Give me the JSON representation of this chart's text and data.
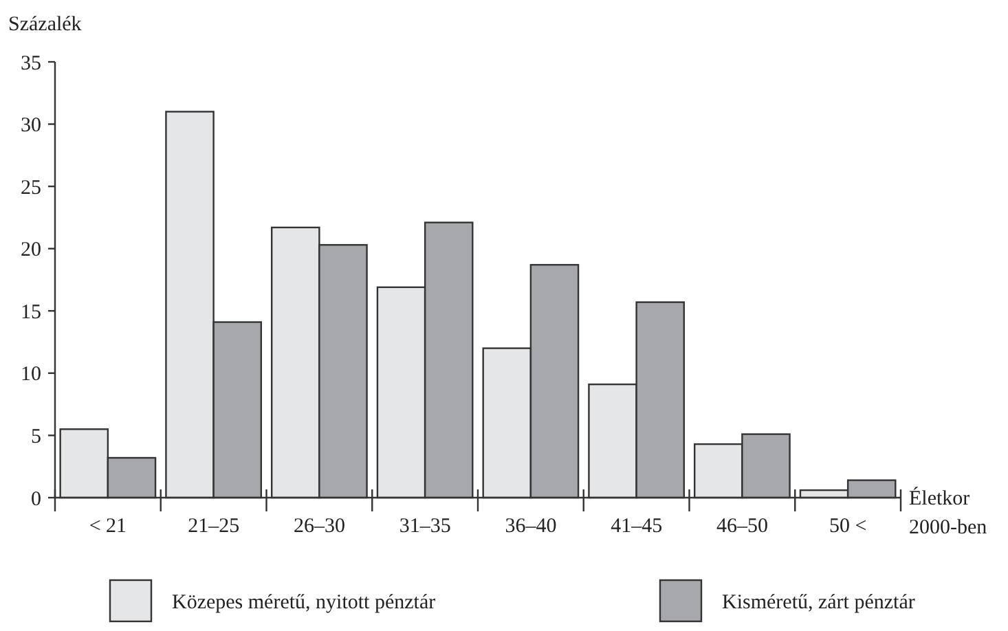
{
  "chart_data": {
    "type": "bar",
    "ylabel": "Százalék",
    "xlabel": "Életkor\n2000-ben",
    "categories": [
      "< 21",
      "21–25",
      "26–30",
      "31–35",
      "36–40",
      "41–45",
      "46–50",
      "50 <"
    ],
    "series": [
      {
        "name": "Közepes méretű, nyitott pénztár",
        "color": "#e5e6e8",
        "values": [
          5.5,
          31,
          21.7,
          16.9,
          12,
          9.1,
          4.3,
          0.6
        ]
      },
      {
        "name": "Kisméretű, zárt pénztár",
        "color": "#a7a8ac",
        "values": [
          3.2,
          14.1,
          20.3,
          22.1,
          18.7,
          15.7,
          5.1,
          1.4
        ]
      }
    ],
    "ylim": [
      0,
      35
    ],
    "yticks": [
      0,
      5,
      10,
      15,
      20,
      25,
      30,
      35
    ],
    "grid": false,
    "legend": "bottom"
  }
}
